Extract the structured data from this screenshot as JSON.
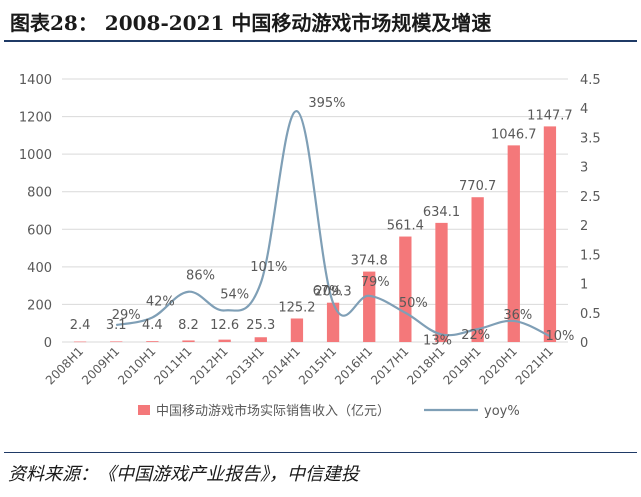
{
  "header": {
    "title": "图表28：   2008-2021 中国移动游戏市场规模及增速"
  },
  "footer": {
    "source": "资料来源：《中国游戏产业报告》，中信建投"
  },
  "colors": {
    "bar": "#f4787a",
    "line": "#7f9fb6",
    "axis": "#d9d9d9",
    "tick_text": "#595959",
    "label_text": "#595959",
    "rule": "#1f3a66"
  },
  "chart_data": {
    "type": "bar+line",
    "title": "2008-2021 中国移动游戏市场规模及增速",
    "categories": [
      "2008H1",
      "2009H1",
      "2010H1",
      "2011H1",
      "2012H1",
      "2013H1",
      "2014H1",
      "2015H1",
      "2016H1",
      "2017H1",
      "2018H1",
      "2019H1",
      "2020H1",
      "2021H1"
    ],
    "series": [
      {
        "name": "中国移动游戏市场实际销售收入（亿元）",
        "type": "bar",
        "axis": "left",
        "values": [
          2.4,
          3.1,
          4.4,
          8.2,
          12.6,
          25.3,
          125.2,
          209.3,
          374.8,
          561.4,
          634.1,
          770.7,
          1046.7,
          1147.7
        ],
        "labels": [
          "2.4",
          "3.1",
          "4.4",
          "8.2",
          "12.6",
          "25.3",
          "125.2",
          "209.3",
          "374.8",
          "561.4",
          "634.1",
          "770.7",
          "1046.7",
          "1147.7"
        ]
      },
      {
        "name": "yoy%",
        "type": "line",
        "axis": "right",
        "values": [
          null,
          0.29,
          0.42,
          0.86,
          0.54,
          1.01,
          3.95,
          0.67,
          0.79,
          0.5,
          0.13,
          0.22,
          0.36,
          0.1
        ],
        "labels": [
          "",
          "29%",
          "42%",
          "86%",
          "54%",
          "101%",
          "395%",
          "67%",
          "79%",
          "50%",
          "13%",
          "22%",
          "36%",
          "10%"
        ]
      }
    ],
    "y_left": {
      "min": 0,
      "max": 1400,
      "ticks": [
        "0",
        "200",
        "400",
        "600",
        "800",
        "1000",
        "1200",
        "1400"
      ]
    },
    "y_right": {
      "min": 0,
      "max": 4.5,
      "ticks": [
        "0",
        "0.5",
        "1",
        "1.5",
        "2",
        "2.5",
        "3",
        "3.5",
        "4",
        "4.5"
      ]
    },
    "legend": {
      "position": "bottom"
    }
  }
}
